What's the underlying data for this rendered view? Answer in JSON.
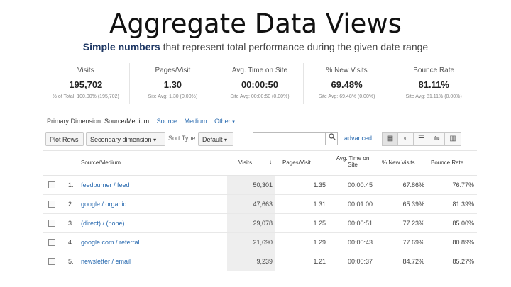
{
  "slide": {
    "title": "Aggregate Data Views",
    "subtitle_highlight": "Simple numbers",
    "subtitle_rest": "that represent total performance during the given date range"
  },
  "summary": [
    {
      "label": "Visits",
      "value": "195,702",
      "sub": "% of Total: 100.00% (195,702)"
    },
    {
      "label": "Pages/Visit",
      "value": "1.30",
      "sub": "Site Avg: 1.30 (0.00%)"
    },
    {
      "label": "Avg. Time on Site",
      "value": "00:00:50",
      "sub": "Site Avg: 00:00:50 (0.00%)"
    },
    {
      "label": "% New Visits",
      "value": "69.48%",
      "sub": "Site Avg: 69.48% (0.00%)"
    },
    {
      "label": "Bounce Rate",
      "value": "81.11%",
      "sub": "Site Avg: 81.11% (0.00%)"
    }
  ],
  "primary_dimension": {
    "label": "Primary Dimension:",
    "current": "Source/Medium",
    "options": [
      "Source",
      "Medium",
      "Other"
    ]
  },
  "toolbar": {
    "plot_rows": "Plot Rows",
    "secondary_dimension": "Secondary dimension",
    "sort_type_label": "Sort Type:",
    "sort_type_value": "Default",
    "search_placeholder": "",
    "advanced": "advanced",
    "view_icons": [
      "table-view-icon",
      "pie-view-icon",
      "performance-view-icon",
      "comparison-view-icon",
      "pivot-view-icon"
    ]
  },
  "table": {
    "headers": {
      "source": "Source/Medium",
      "visits": "Visits",
      "pages": "Pages/Visit",
      "avg_time_l1": "Avg. Time on",
      "avg_time_l2": "Site",
      "new_visits": "% New Visits",
      "bounce": "Bounce Rate"
    },
    "rows": [
      {
        "num": "1.",
        "source": "feedburner / feed",
        "visits": "50,301",
        "pages": "1.35",
        "time": "00:00:45",
        "new": "67.86%",
        "bounce": "76.77%"
      },
      {
        "num": "2.",
        "source": "google / organic",
        "visits": "47,663",
        "pages": "1.31",
        "time": "00:01:00",
        "new": "65.39%",
        "bounce": "81.39%"
      },
      {
        "num": "3.",
        "source": "(direct) / (none)",
        "visits": "29,078",
        "pages": "1.25",
        "time": "00:00:51",
        "new": "77.23%",
        "bounce": "85.00%"
      },
      {
        "num": "4.",
        "source": "google.com / referral",
        "visits": "21,690",
        "pages": "1.29",
        "time": "00:00:43",
        "new": "77.69%",
        "bounce": "80.89%"
      },
      {
        "num": "5.",
        "source": "newsletter / email",
        "visits": "9,239",
        "pages": "1.21",
        "time": "00:00:37",
        "new": "84.72%",
        "bounce": "85.27%"
      }
    ]
  },
  "colors": {
    "link": "#2a6bb0",
    "visits_column_bg": "#eeeeee"
  }
}
